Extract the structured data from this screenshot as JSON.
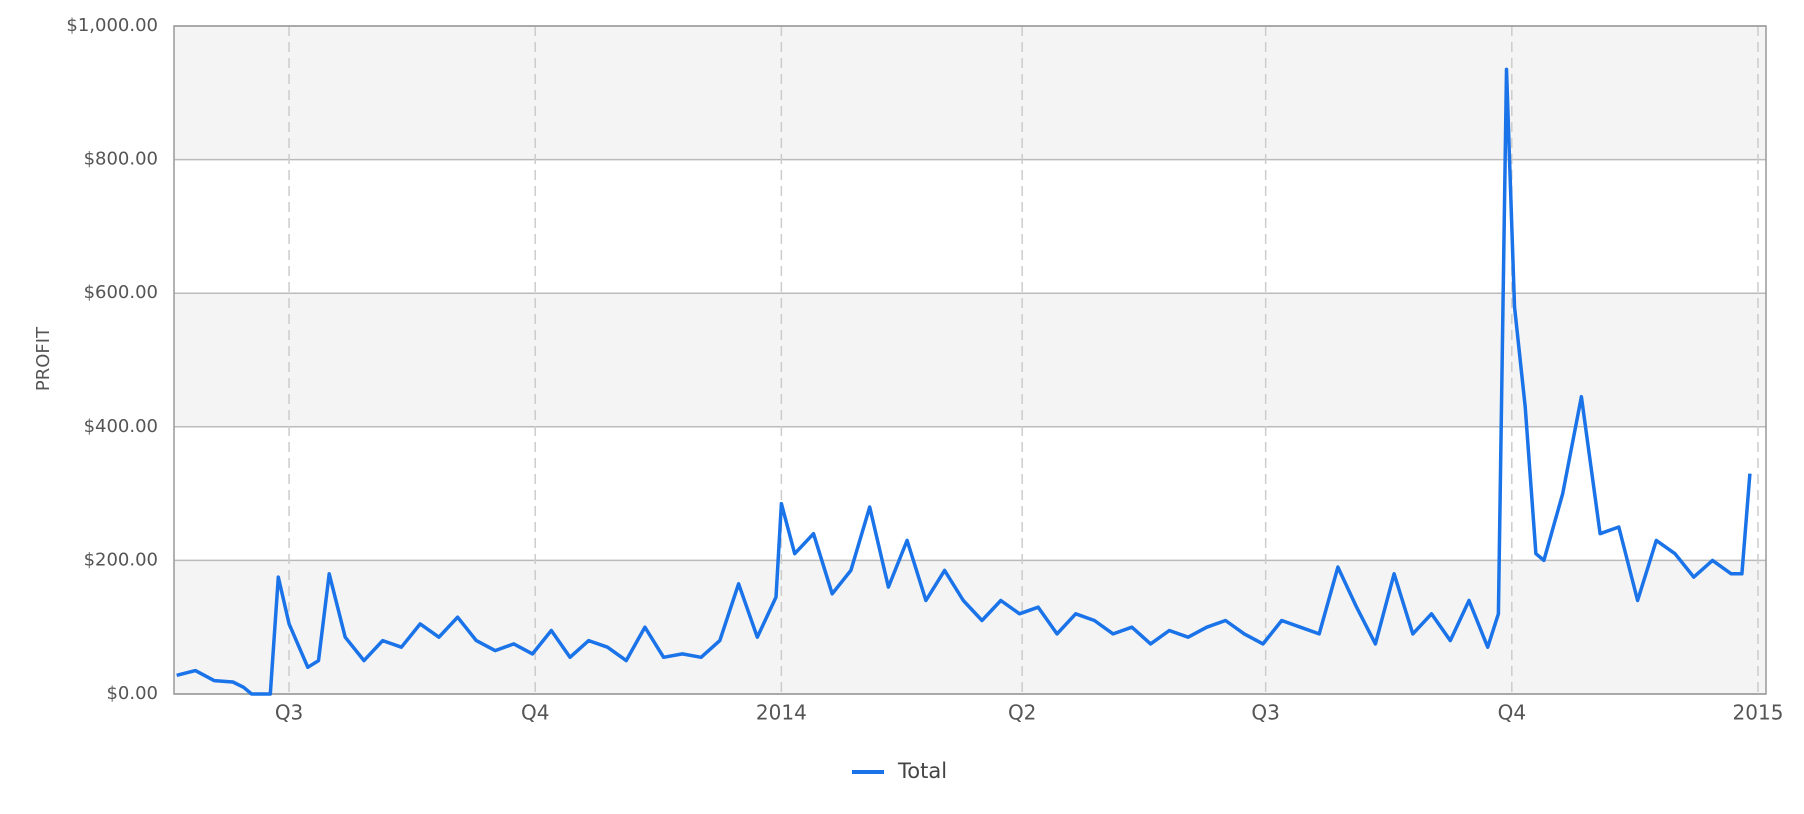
{
  "chart_data": {
    "type": "line",
    "y_label": "PROFIT",
    "x": [
      "2013-05-20",
      "2013-05-27",
      "2013-06-03",
      "2013-06-10",
      "2013-06-14",
      "2013-06-17",
      "2013-06-24",
      "2013-06-27",
      "2013-07-01",
      "2013-07-08",
      "2013-07-12",
      "2013-07-16",
      "2013-07-22",
      "2013-07-29",
      "2013-08-05",
      "2013-08-12",
      "2013-08-19",
      "2013-08-26",
      "2013-09-02",
      "2013-09-09",
      "2013-09-16",
      "2013-09-23",
      "2013-09-30",
      "2013-10-07",
      "2013-10-14",
      "2013-10-21",
      "2013-10-28",
      "2013-11-04",
      "2013-11-11",
      "2013-11-18",
      "2013-11-25",
      "2013-12-02",
      "2013-12-09",
      "2013-12-16",
      "2013-12-23",
      "2013-12-30",
      "2014-01-01",
      "2014-01-06",
      "2014-01-13",
      "2014-01-20",
      "2014-01-27",
      "2014-02-03",
      "2014-02-10",
      "2014-02-17",
      "2014-02-24",
      "2014-03-03",
      "2014-03-10",
      "2014-03-17",
      "2014-03-24",
      "2014-03-31",
      "2014-04-07",
      "2014-04-14",
      "2014-04-21",
      "2014-04-28",
      "2014-05-05",
      "2014-05-12",
      "2014-05-19",
      "2014-05-26",
      "2014-06-02",
      "2014-06-09",
      "2014-06-16",
      "2014-06-23",
      "2014-06-30",
      "2014-07-07",
      "2014-07-14",
      "2014-07-21",
      "2014-07-28",
      "2014-08-04",
      "2014-08-11",
      "2014-08-18",
      "2014-08-25",
      "2014-09-01",
      "2014-09-08",
      "2014-09-15",
      "2014-09-22",
      "2014-09-26",
      "2014-09-29",
      "2014-10-02",
      "2014-10-06",
      "2014-10-10",
      "2014-10-13",
      "2014-10-20",
      "2014-10-27",
      "2014-11-03",
      "2014-11-10",
      "2014-11-17",
      "2014-11-24",
      "2014-12-01",
      "2014-12-08",
      "2014-12-15",
      "2014-12-22",
      "2014-12-26",
      "2014-12-29"
    ],
    "series": [
      {
        "name": "Total",
        "color": "#1a73e8",
        "values": [
          28,
          35,
          20,
          18,
          10,
          0,
          0,
          175,
          105,
          40,
          50,
          180,
          85,
          50,
          80,
          70,
          105,
          85,
          115,
          80,
          65,
          75,
          60,
          95,
          55,
          80,
          70,
          50,
          100,
          55,
          60,
          55,
          80,
          165,
          85,
          145,
          285,
          210,
          240,
          150,
          185,
          280,
          160,
          230,
          140,
          185,
          140,
          110,
          140,
          120,
          130,
          90,
          120,
          110,
          90,
          100,
          75,
          95,
          85,
          100,
          110,
          90,
          75,
          110,
          100,
          90,
          190,
          130,
          75,
          180,
          90,
          120,
          80,
          140,
          70,
          120,
          935,
          580,
          430,
          210,
          200,
          300,
          445,
          240,
          250,
          140,
          230,
          210,
          175,
          200,
          180,
          180,
          330
        ]
      }
    ],
    "xlim": [
      "2013-05-19",
      "2015-01-04"
    ],
    "xticks": [
      {
        "value": "2013-07-01",
        "label": "Q3"
      },
      {
        "value": "2013-10-01",
        "label": "Q4"
      },
      {
        "value": "2014-01-01",
        "label": "2014"
      },
      {
        "value": "2014-04-01",
        "label": "Q2"
      },
      {
        "value": "2014-07-01",
        "label": "Q3"
      },
      {
        "value": "2014-10-01",
        "label": "Q4"
      },
      {
        "value": "2015-01-01",
        "label": "2015"
      }
    ],
    "ylim": [
      0,
      1000
    ],
    "yticks": [
      {
        "value": 0,
        "label": "$0.00"
      },
      {
        "value": 200,
        "label": "$200.00"
      },
      {
        "value": 400,
        "label": "$400.00"
      },
      {
        "value": 600,
        "label": "$600.00"
      },
      {
        "value": 800,
        "label": "$800.00"
      },
      {
        "value": 1000,
        "label": "$1,000.00"
      }
    ],
    "grid": true,
    "legend": "bottom"
  }
}
